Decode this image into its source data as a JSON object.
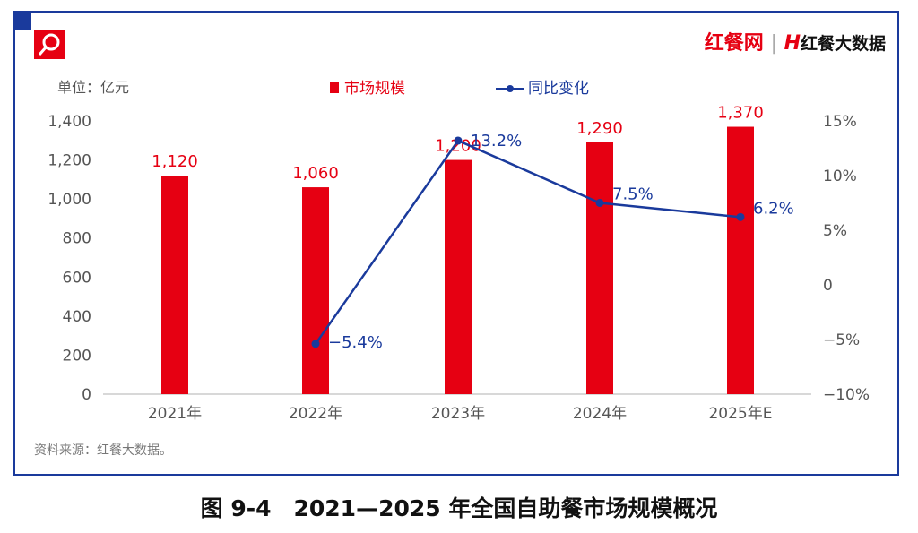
{
  "brand": {
    "name1": "红餐网",
    "name2": "红餐大数据"
  },
  "caption": "图 9-4　2021—2025 年全国自助餐市场规模概况",
  "source": "资料来源：红餐大数据。",
  "colors": {
    "bar": "#e60012",
    "line": "#1a3a9c",
    "frame": "#1a3a9c"
  },
  "chart_data": {
    "type": "bar+line",
    "unit_label": "单位：亿元",
    "categories": [
      "2021年",
      "2022年",
      "2023年",
      "2024年",
      "2025年E"
    ],
    "series": [
      {
        "name": "市场规模",
        "type": "bar",
        "axis": "left",
        "values": [
          1120,
          1060,
          1200,
          1290,
          1370
        ],
        "labels": [
          "1,120",
          "1,060",
          "1,200",
          "1,290",
          "1,370"
        ]
      },
      {
        "name": "同比变化",
        "type": "line",
        "axis": "right",
        "values": [
          null,
          -5.4,
          13.2,
          7.5,
          6.2
        ],
        "labels": [
          "",
          "−5.4%",
          "13.2%",
          "7.5%",
          "6.2%"
        ]
      }
    ],
    "left_axis": {
      "ylim": [
        0,
        1400
      ],
      "ticks": [
        "0",
        "200",
        "400",
        "600",
        "800",
        "1,000",
        "1,200",
        "1,400"
      ]
    },
    "right_axis": {
      "ylim": [
        -10,
        15
      ],
      "ticks": [
        "−10%",
        "−5%",
        "0",
        "5%",
        "10%",
        "15%"
      ]
    },
    "legend": "top-center",
    "grid": false
  }
}
